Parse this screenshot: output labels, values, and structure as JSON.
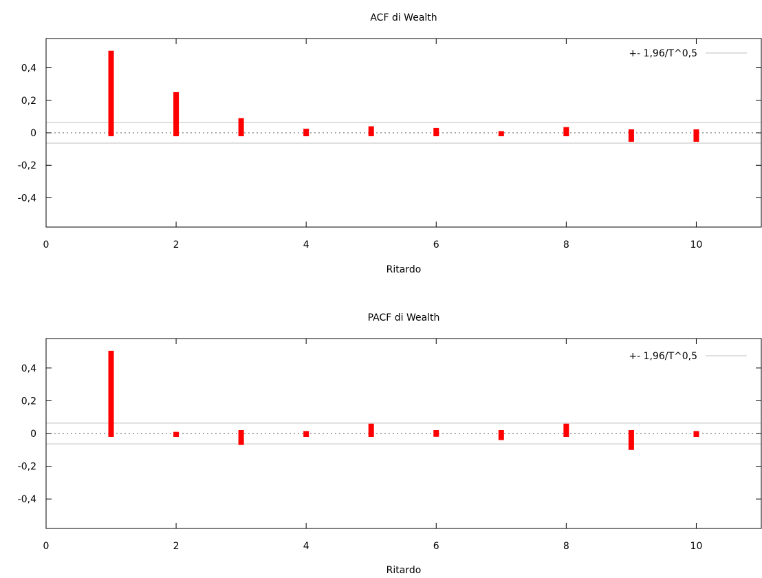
{
  "chart_data": [
    {
      "type": "bar",
      "title": "ACF di Wealth",
      "xlabel": "Ritardo",
      "ylabel": "",
      "xlim": [
        0,
        11
      ],
      "ylim": [
        -0.58,
        0.58
      ],
      "x_ticks": [
        0,
        2,
        4,
        6,
        8,
        10
      ],
      "x_tick_labels": [
        "0",
        "2",
        "4",
        "6",
        "8",
        "10"
      ],
      "y_ticks": [
        0.4,
        0.2,
        0,
        -0.2,
        -0.4
      ],
      "y_tick_labels": [
        "0,4",
        "0,2",
        "0",
        "-0,2",
        "-0,4"
      ],
      "x": [
        1,
        2,
        3,
        4,
        5,
        6,
        7,
        8,
        9,
        10
      ],
      "values": [
        0.505,
        0.25,
        0.09,
        0.025,
        0.04,
        0.03,
        0.01,
        0.035,
        -0.055,
        -0.055
      ],
      "confidence_band": 0.0635,
      "legend": {
        "label": "+- 1,96/T^0,5",
        "position": "top-right"
      },
      "bar_color": "#ff0000",
      "band_color": "#cccccc"
    },
    {
      "type": "bar",
      "title": "PACF di Wealth",
      "xlabel": "Ritardo",
      "ylabel": "",
      "xlim": [
        0,
        11
      ],
      "ylim": [
        -0.58,
        0.58
      ],
      "x_ticks": [
        0,
        2,
        4,
        6,
        8,
        10
      ],
      "x_tick_labels": [
        "0",
        "2",
        "4",
        "6",
        "8",
        "10"
      ],
      "y_ticks": [
        0.4,
        0.2,
        0,
        -0.2,
        -0.4
      ],
      "y_tick_labels": [
        "0,4",
        "0,2",
        "0",
        "-0,2",
        "-0,4"
      ],
      "x": [
        1,
        2,
        3,
        4,
        5,
        6,
        7,
        8,
        9,
        10
      ],
      "values": [
        0.505,
        0.01,
        -0.07,
        0.015,
        0.06,
        -0.02,
        -0.04,
        0.06,
        -0.1,
        0.015
      ],
      "confidence_band": 0.0635,
      "legend": {
        "label": "+- 1,96/T^0,5",
        "position": "top-right"
      },
      "bar_color": "#ff0000",
      "band_color": "#cccccc"
    }
  ]
}
